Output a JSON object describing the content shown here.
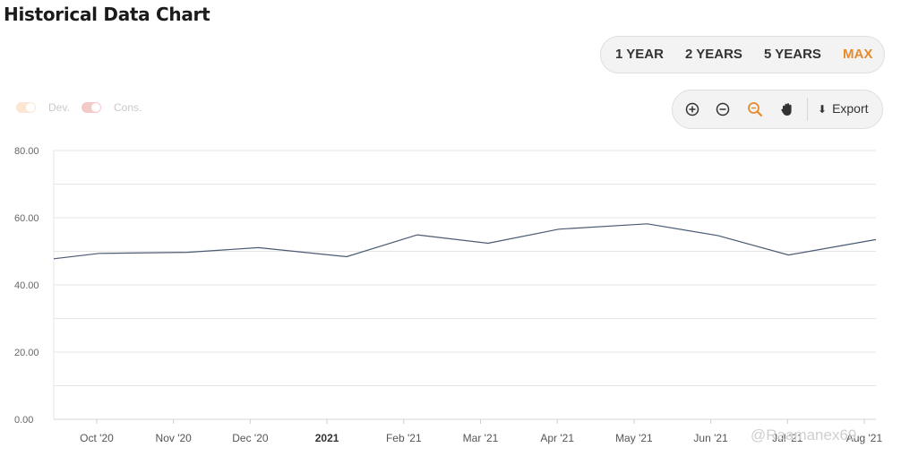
{
  "page": {
    "title": "Historical Data Chart"
  },
  "range_buttons": [
    {
      "label": "1 YEAR",
      "active": false
    },
    {
      "label": "2 YEARS",
      "active": false
    },
    {
      "label": "5 YEARS",
      "active": false
    },
    {
      "label": "MAX",
      "active": true
    }
  ],
  "colors": {
    "accent": "#e68a2e",
    "line": "#4a5a72",
    "grid": "#e6e6e6",
    "dev_toggle": "#fbe6d4",
    "cons_toggle": "#f3cbc6"
  },
  "legend": [
    {
      "label": "Dev.",
      "icon": "toggle-icon"
    },
    {
      "label": "Cons.",
      "icon": "toggle-icon"
    }
  ],
  "toolbar": {
    "icons": [
      "zoom-in-icon",
      "zoom-out-icon",
      "magnify-icon",
      "pan-hand-icon"
    ],
    "export_label": "Export",
    "export_icon": "download-icon"
  },
  "watermark": "@Raamanex69",
  "chart_data": {
    "type": "line",
    "title": "",
    "xlabel": "",
    "ylabel": "",
    "ylim": [
      0,
      80
    ],
    "y_ticks": [
      "0.00",
      "20.00",
      "40.00",
      "60.00",
      "80.00"
    ],
    "x_ticks": [
      {
        "label": "Oct '20",
        "bold": false
      },
      {
        "label": "Nov '20",
        "bold": false
      },
      {
        "label": "Dec '20",
        "bold": false
      },
      {
        "label": "2021",
        "bold": true
      },
      {
        "label": "Feb '21",
        "bold": false
      },
      {
        "label": "Mar '21",
        "bold": false
      },
      {
        "label": "Apr '21",
        "bold": false
      },
      {
        "label": "May '21",
        "bold": false
      },
      {
        "label": "Jun '21",
        "bold": false
      },
      {
        "label": "Jul '21",
        "bold": false
      },
      {
        "label": "Aug '21",
        "bold": false
      }
    ],
    "grid": true,
    "x": [
      "2020-09-04",
      "2020-10-02",
      "2020-11-06",
      "2020-12-04",
      "2021-01-08",
      "2021-02-05",
      "2021-03-05",
      "2021-04-02",
      "2021-05-07",
      "2021-06-04",
      "2021-07-02",
      "2021-08-06"
    ],
    "series": [
      {
        "name": "",
        "values": [
          47.8,
          49.4,
          49.7,
          51.1,
          48.4,
          54.9,
          52.4,
          56.6,
          58.2,
          54.7,
          48.9,
          53.5
        ]
      }
    ]
  }
}
